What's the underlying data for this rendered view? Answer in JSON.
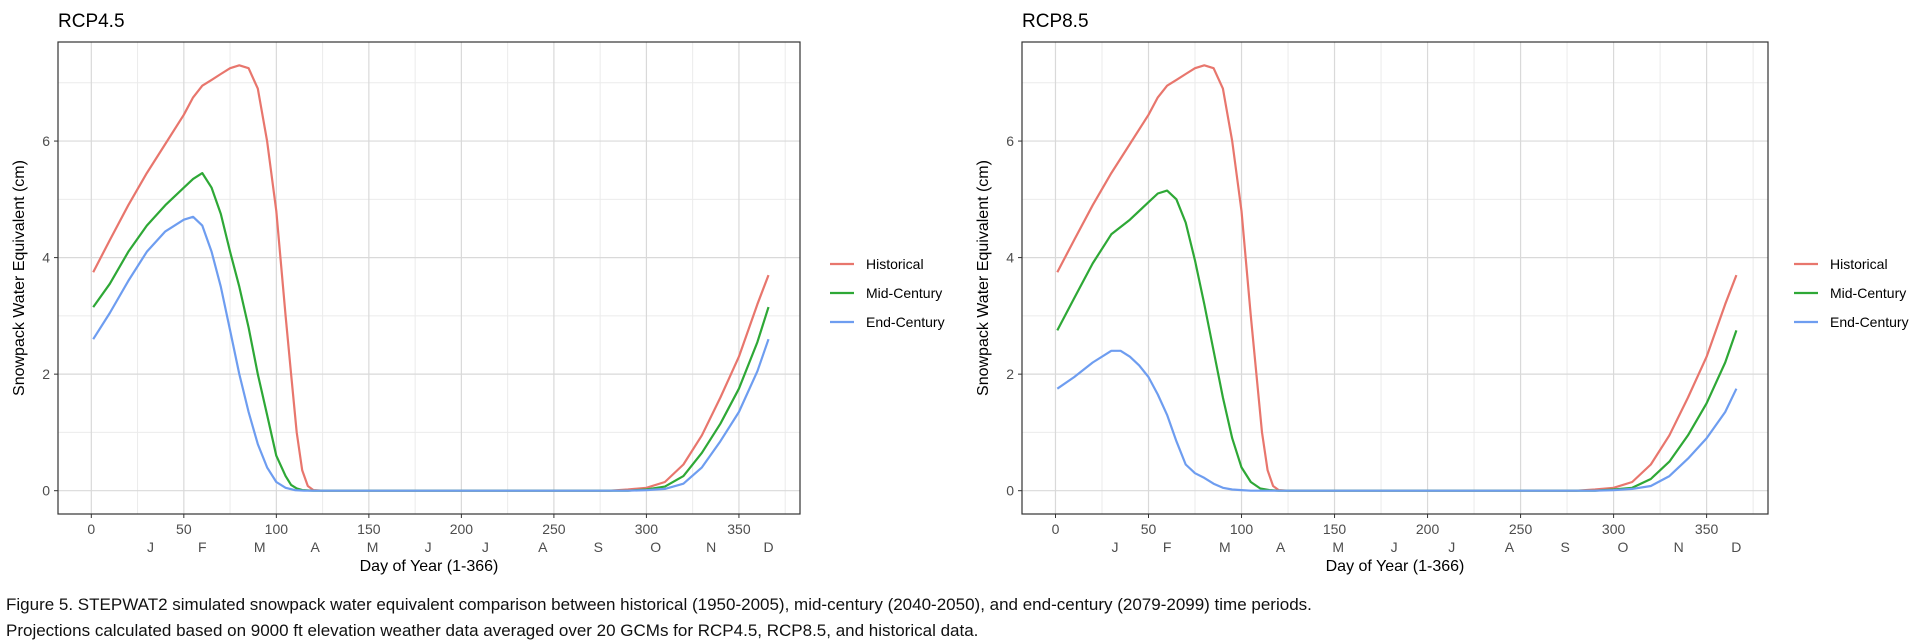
{
  "caption": {
    "line1": "Figure 5. STEPWAT2 simulated snowpack water equivalent comparison between historical (1950-2005), mid-century (2040-2050), and end-century (2079-2099) time periods.",
    "line2": "Projections calculated based on 9000 ft elevation weather data averaged over 20 GCMs for RCP4.5, RCP8.5, and historical data."
  },
  "colors": {
    "Historical": "#E8766D",
    "Mid-Century": "#2EA836",
    "End-Century": "#6E9DF0",
    "grid": "#d9d9d9",
    "panel_border": "#333333",
    "axis_text": "#4d4d4d"
  },
  "chart_data": [
    {
      "type": "line",
      "title": "RCP4.5",
      "xlabel": "Day of Year (1-366)",
      "ylabel": "Snowpack Water Equivalent (cm)",
      "xlim": [
        -18,
        383
      ],
      "ylim": [
        -0.4,
        7.7
      ],
      "xticks": [
        0,
        50,
        100,
        150,
        200,
        250,
        300,
        350
      ],
      "yticks": [
        0,
        2,
        4,
        6
      ],
      "month_labels": [
        {
          "x": 32,
          "label": "J"
        },
        {
          "x": 60,
          "label": "F"
        },
        {
          "x": 91,
          "label": "M"
        },
        {
          "x": 121,
          "label": "A"
        },
        {
          "x": 152,
          "label": "M"
        },
        {
          "x": 182,
          "label": "J"
        },
        {
          "x": 213,
          "label": "J"
        },
        {
          "x": 244,
          "label": "A"
        },
        {
          "x": 274,
          "label": "S"
        },
        {
          "x": 305,
          "label": "O"
        },
        {
          "x": 335,
          "label": "N"
        },
        {
          "x": 366,
          "label": "D"
        }
      ],
      "grid": true,
      "legend_position": "right",
      "series": [
        {
          "name": "Historical",
          "x": [
            1,
            10,
            20,
            30,
            40,
            50,
            55,
            60,
            65,
            70,
            75,
            80,
            85,
            90,
            95,
            100,
            105,
            108,
            111,
            114,
            117,
            120,
            125,
            200,
            280,
            290,
            300,
            310,
            320,
            330,
            340,
            350,
            360,
            366
          ],
          "y": [
            3.75,
            4.3,
            4.9,
            5.45,
            5.95,
            6.45,
            6.75,
            6.95,
            7.05,
            7.15,
            7.25,
            7.3,
            7.25,
            6.9,
            6.0,
            4.8,
            3.0,
            2.0,
            1.0,
            0.35,
            0.08,
            0.01,
            0,
            0,
            0,
            0.02,
            0.05,
            0.15,
            0.45,
            0.95,
            1.6,
            2.3,
            3.2,
            3.7
          ]
        },
        {
          "name": "Mid-Century",
          "x": [
            1,
            10,
            20,
            30,
            40,
            50,
            55,
            60,
            65,
            70,
            75,
            80,
            85,
            90,
            95,
            100,
            105,
            108,
            111,
            114,
            120,
            200,
            290,
            300,
            310,
            320,
            330,
            340,
            350,
            360,
            366
          ],
          "y": [
            3.15,
            3.55,
            4.1,
            4.55,
            4.9,
            5.2,
            5.35,
            5.45,
            5.2,
            4.75,
            4.1,
            3.5,
            2.8,
            2.0,
            1.3,
            0.6,
            0.25,
            0.1,
            0.04,
            0.01,
            0,
            0,
            0,
            0.02,
            0.07,
            0.25,
            0.65,
            1.15,
            1.75,
            2.55,
            3.15
          ]
        },
        {
          "name": "End-Century",
          "x": [
            1,
            10,
            20,
            30,
            40,
            50,
            55,
            60,
            65,
            70,
            75,
            80,
            85,
            90,
            95,
            100,
            105,
            110,
            115,
            120,
            200,
            290,
            300,
            310,
            320,
            330,
            340,
            350,
            360,
            366
          ],
          "y": [
            2.6,
            3.05,
            3.6,
            4.1,
            4.45,
            4.65,
            4.7,
            4.55,
            4.1,
            3.5,
            2.75,
            2.0,
            1.35,
            0.8,
            0.4,
            0.15,
            0.05,
            0.01,
            0,
            0,
            0,
            0,
            0.01,
            0.03,
            0.12,
            0.4,
            0.85,
            1.35,
            2.05,
            2.6
          ]
        }
      ]
    },
    {
      "type": "line",
      "title": "RCP8.5",
      "xlabel": "Day of Year (1-366)",
      "ylabel": "Snowpack Water Equivalent (cm)",
      "xlim": [
        -18,
        383
      ],
      "ylim": [
        -0.4,
        7.7
      ],
      "xticks": [
        0,
        50,
        100,
        150,
        200,
        250,
        300,
        350
      ],
      "yticks": [
        0,
        2,
        4,
        6
      ],
      "month_labels": [
        {
          "x": 32,
          "label": "J"
        },
        {
          "x": 60,
          "label": "F"
        },
        {
          "x": 91,
          "label": "M"
        },
        {
          "x": 121,
          "label": "A"
        },
        {
          "x": 152,
          "label": "M"
        },
        {
          "x": 182,
          "label": "J"
        },
        {
          "x": 213,
          "label": "J"
        },
        {
          "x": 244,
          "label": "A"
        },
        {
          "x": 274,
          "label": "S"
        },
        {
          "x": 305,
          "label": "O"
        },
        {
          "x": 335,
          "label": "N"
        },
        {
          "x": 366,
          "label": "D"
        }
      ],
      "grid": true,
      "legend_position": "right",
      "series": [
        {
          "name": "Historical",
          "x": [
            1,
            10,
            20,
            30,
            40,
            50,
            55,
            60,
            65,
            70,
            75,
            80,
            85,
            90,
            95,
            100,
            105,
            108,
            111,
            114,
            117,
            120,
            125,
            200,
            280,
            290,
            300,
            310,
            320,
            330,
            340,
            350,
            360,
            366
          ],
          "y": [
            3.75,
            4.3,
            4.9,
            5.45,
            5.95,
            6.45,
            6.75,
            6.95,
            7.05,
            7.15,
            7.25,
            7.3,
            7.25,
            6.9,
            6.0,
            4.8,
            3.0,
            2.0,
            1.0,
            0.35,
            0.08,
            0.01,
            0,
            0,
            0,
            0.02,
            0.05,
            0.15,
            0.45,
            0.95,
            1.6,
            2.3,
            3.2,
            3.7
          ]
        },
        {
          "name": "Mid-Century",
          "x": [
            1,
            10,
            20,
            30,
            40,
            50,
            55,
            60,
            65,
            70,
            75,
            80,
            85,
            90,
            95,
            100,
            105,
            110,
            115,
            120,
            200,
            290,
            300,
            310,
            320,
            330,
            340,
            350,
            360,
            366
          ],
          "y": [
            2.75,
            3.3,
            3.9,
            4.4,
            4.65,
            4.95,
            5.1,
            5.15,
            5.0,
            4.6,
            3.95,
            3.2,
            2.4,
            1.6,
            0.9,
            0.4,
            0.15,
            0.04,
            0.01,
            0,
            0,
            0,
            0.02,
            0.05,
            0.2,
            0.5,
            0.95,
            1.5,
            2.2,
            2.75
          ]
        },
        {
          "name": "End-Century",
          "x": [
            1,
            10,
            20,
            30,
            35,
            40,
            45,
            50,
            55,
            60,
            65,
            70,
            75,
            80,
            85,
            90,
            95,
            100,
            105,
            110,
            115,
            200,
            290,
            300,
            310,
            320,
            330,
            340,
            350,
            360,
            366
          ],
          "y": [
            1.75,
            1.95,
            2.2,
            2.4,
            2.4,
            2.3,
            2.15,
            1.95,
            1.65,
            1.3,
            0.85,
            0.45,
            0.3,
            0.22,
            0.12,
            0.05,
            0.02,
            0.01,
            0,
            0,
            0,
            0,
            0,
            0.01,
            0.03,
            0.08,
            0.25,
            0.55,
            0.9,
            1.35,
            1.75
          ]
        }
      ]
    }
  ]
}
